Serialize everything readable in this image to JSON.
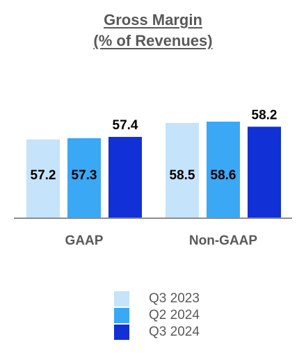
{
  "chart_data": {
    "type": "bar",
    "title": [
      "Gross Margin",
      "(% of Revenues)"
    ],
    "categories": [
      "GAAP",
      "Non-GAAP"
    ],
    "series": [
      {
        "name": "Q3 2023",
        "color": "#c5e3fa",
        "values": [
          57.2,
          58.5
        ]
      },
      {
        "name": "Q2 2024",
        "color": "#3aa8f5",
        "values": [
          57.3,
          58.6
        ]
      },
      {
        "name": "Q3 2024",
        "color": "#1130d6",
        "values": [
          57.4,
          58.2
        ]
      }
    ],
    "xlabel": "",
    "ylabel": "",
    "grid": false,
    "legend_position": "bottom-center"
  }
}
